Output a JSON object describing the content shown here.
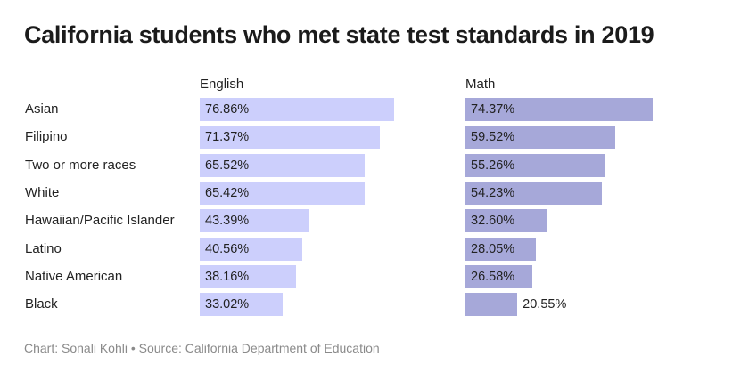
{
  "chart_data": {
    "type": "bar",
    "orientation": "horizontal",
    "title": "California students who met state test standards in 2019",
    "categories": [
      "Asian",
      "Filipino",
      "Two or more races",
      "White",
      "Hawaiian/Pacific Islander",
      "Latino",
      "Native American",
      "Black"
    ],
    "series": [
      {
        "name": "English",
        "color": "#cccffc",
        "values": [
          76.86,
          71.37,
          65.52,
          65.42,
          43.39,
          40.56,
          38.16,
          33.02
        ],
        "labels": [
          "76.86%",
          "71.37%",
          "65.52%",
          "65.42%",
          "43.39%",
          "40.56%",
          "38.16%",
          "33.02%"
        ]
      },
      {
        "name": "Math",
        "color": "#a6a8d9",
        "values": [
          74.37,
          59.52,
          55.26,
          54.23,
          32.6,
          28.05,
          26.58,
          20.55
        ],
        "labels": [
          "74.37%",
          "59.52%",
          "55.26%",
          "54.23%",
          "32.60%",
          "28.05%",
          "26.58%",
          "20.55%"
        ]
      }
    ],
    "xlim": [
      0,
      100
    ],
    "grid": false,
    "legend": "none",
    "footer": "Chart: Sonali Kohli • Source: California Department of Education"
  }
}
